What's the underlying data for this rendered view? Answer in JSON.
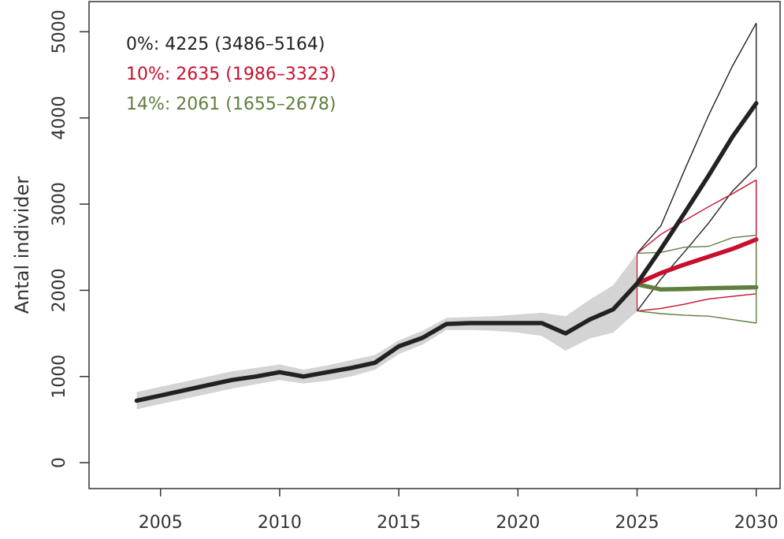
{
  "chart_data": {
    "type": "line",
    "ylabel": "Antal individer",
    "xlim": [
      2002,
      2031
    ],
    "ylim": [
      -300,
      5350
    ],
    "x_ticks": [
      "2005",
      "2010",
      "2015",
      "2020",
      "2025",
      "2030"
    ],
    "y_ticks": [
      "0",
      "1000",
      "2000",
      "3000",
      "4000",
      "5000"
    ],
    "legend": [
      {
        "text": "0%: 4225 (3486–5164)",
        "color": "#222222"
      },
      {
        "text": "10%: 2635 (1986–3323)",
        "color": "#c8102e"
      },
      {
        "text": "14%: 2061 (1655–2678)",
        "color": "#5f7f3f"
      }
    ],
    "historical": {
      "x": [
        2004,
        2005,
        2006,
        2007,
        2008,
        2009,
        2010,
        2011,
        2012,
        2013,
        2014,
        2015,
        2016,
        2017,
        2018,
        2019,
        2020,
        2021,
        2022,
        2023,
        2024,
        2025
      ],
      "y": [
        720,
        780,
        840,
        900,
        960,
        1000,
        1050,
        1000,
        1050,
        1100,
        1160,
        1350,
        1450,
        1610,
        1620,
        1620,
        1620,
        1620,
        1500,
        1660,
        1780,
        2080
      ],
      "lower": [
        620,
        680,
        740,
        800,
        860,
        910,
        960,
        920,
        950,
        1000,
        1080,
        1260,
        1370,
        1540,
        1540,
        1530,
        1510,
        1470,
        1300,
        1440,
        1510,
        1760
      ],
      "upper": [
        820,
        880,
        940,
        1000,
        1060,
        1100,
        1140,
        1080,
        1130,
        1190,
        1250,
        1420,
        1530,
        1680,
        1690,
        1700,
        1720,
        1740,
        1700,
        1890,
        2060,
        2430
      ]
    },
    "projections": [
      {
        "name": "0%",
        "color": "#222222",
        "x": [
          2025,
          2026,
          2027,
          2028,
          2029,
          2030
        ],
        "y": [
          2080,
          2480,
          2900,
          3330,
          3780,
          4170
        ],
        "lower": [
          1760,
          2130,
          2450,
          2780,
          3150,
          3430
        ],
        "upper": [
          2430,
          2750,
          3400,
          4030,
          4600,
          5100
        ]
      },
      {
        "name": "10%",
        "color": "#c8102e",
        "x": [
          2025,
          2026,
          2027,
          2028,
          2029,
          2030
        ],
        "y": [
          2080,
          2200,
          2300,
          2390,
          2480,
          2590
        ],
        "lower": [
          1760,
          1790,
          1840,
          1900,
          1930,
          1960
        ],
        "upper": [
          2430,
          2650,
          2810,
          2970,
          3120,
          3280
        ]
      },
      {
        "name": "14%",
        "color": "#5f7f3f",
        "x": [
          2025,
          2026,
          2027,
          2028,
          2029,
          2030
        ],
        "y": [
          2070,
          2010,
          2015,
          2025,
          2030,
          2035
        ],
        "lower": [
          1760,
          1730,
          1710,
          1700,
          1660,
          1620
        ],
        "upper": [
          2430,
          2440,
          2500,
          2510,
          2610,
          2640
        ]
      }
    ]
  }
}
